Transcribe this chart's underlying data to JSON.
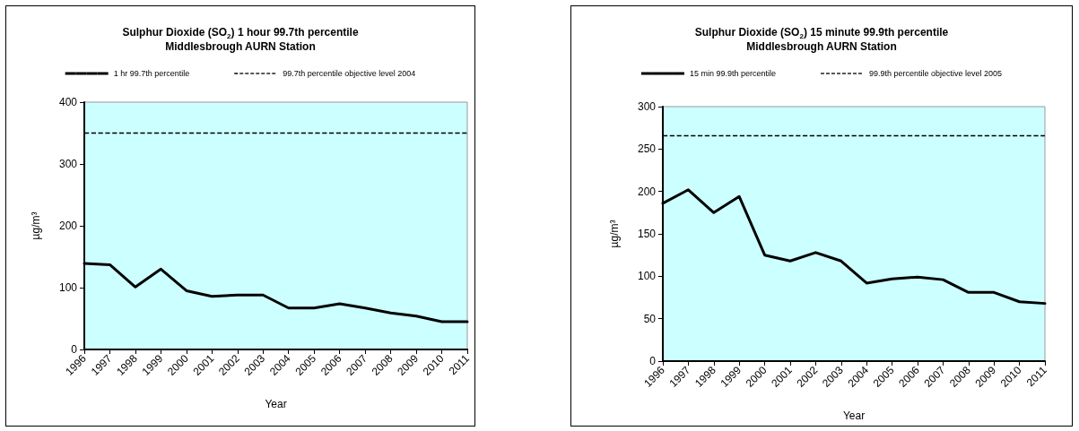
{
  "chart_data": [
    {
      "type": "line",
      "title": "Sulphur Dioxide (SO$_{2}$) 1 hour 99.7th percentile",
      "subtitle": "Middlesbrough AURN Station",
      "xlabel": "Year",
      "ylabel": "µg/m³",
      "categories": [
        "1996",
        "1997",
        "1998",
        "1999",
        "2000",
        "2001",
        "2002",
        "2003",
        "2004",
        "2005",
        "2006",
        "2007",
        "2008",
        "2009",
        "2010",
        "2011"
      ],
      "series": [
        {
          "name": "1 hr 99.7th percentile",
          "color": "#000000",
          "values": [
            139,
            137,
            101,
            130,
            95,
            86,
            88,
            88,
            67,
            67,
            74,
            67,
            59,
            54,
            45,
            45
          ]
        }
      ],
      "ylim": [
        0,
        400
      ],
      "yticks": [
        0,
        100,
        200,
        300,
        400
      ],
      "grid": false,
      "legend": "top",
      "marker": "none",
      "line_style": "solid",
      "ref_lines": [
        {
          "axis": "y",
          "value": 350,
          "label": "99.7th percentile objective level 2004",
          "color": "#000000",
          "line_style": "dashed"
        }
      ]
    },
    {
      "type": "line",
      "title": "Sulphur Dioxide (SO$_{2}$) 15 minute 99.9th percentile",
      "subtitle": "Middlesbrough AURN Station",
      "xlabel": "Year",
      "ylabel": "µg/m³",
      "categories": [
        "1996",
        "1997",
        "1998",
        "1999",
        "2000",
        "2001",
        "2002",
        "2003",
        "2004",
        "2005",
        "2006",
        "2007",
        "2008",
        "2009",
        "2010",
        "2011"
      ],
      "series": [
        {
          "name": "15 min 99.9th percentile",
          "color": "#000000",
          "values": [
            186,
            202,
            175,
            194,
            125,
            118,
            128,
            118,
            92,
            97,
            99,
            96,
            81,
            81,
            70,
            68
          ]
        }
      ],
      "ylim": [
        0,
        300
      ],
      "yticks": [
        0,
        50,
        100,
        150,
        200,
        250,
        300
      ],
      "grid": false,
      "legend": "top",
      "marker": "none",
      "line_style": "solid",
      "ref_lines": [
        {
          "axis": "y",
          "value": 266,
          "label": "99.9th percentile objective level 2005",
          "color": "#000000",
          "line_style": "dashed"
        }
      ]
    }
  ]
}
